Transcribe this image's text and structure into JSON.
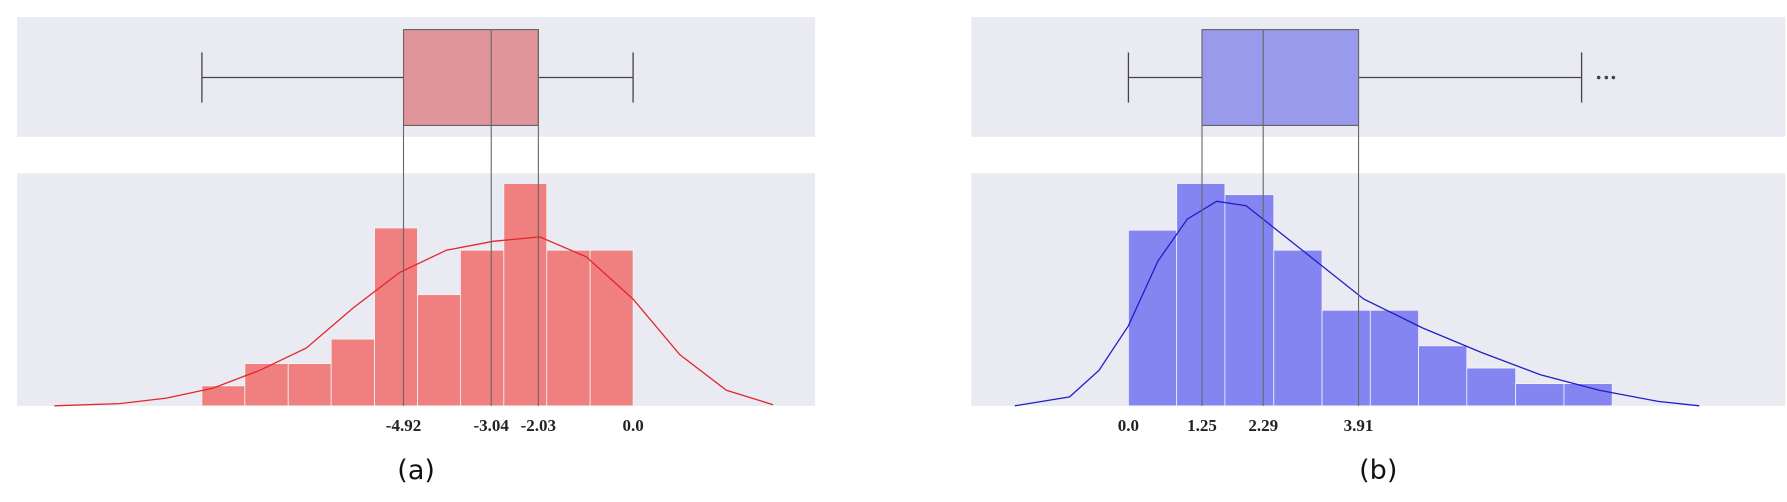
{
  "chart_data": [
    {
      "type": "histogram",
      "caption": "(a)",
      "color": "#f08080",
      "box_color": "#e0959a",
      "kde_color": "#e3262b",
      "xlim": [
        -13.2,
        3.9
      ],
      "ylim": [
        0,
        10.46
      ],
      "xticks": [
        -4.92,
        -3.04,
        -2.03,
        {
          "value": 0,
          "label": "0.0"
        }
      ],
      "bins": [
        -9.24,
        -8.32,
        -7.39,
        -6.47,
        -5.54,
        -4.62,
        -3.7,
        -2.77,
        -1.85,
        -0.92,
        0
      ],
      "counts": [
        0.9,
        1.9,
        1.9,
        3.0,
        8.0,
        5.0,
        7.0,
        10.0,
        7.0,
        7.0
      ],
      "kde": {
        "x": [
          -12.4,
          -11,
          -10,
          -9,
          -8,
          -7,
          -6,
          -5,
          -4,
          -3,
          -2,
          -1,
          0,
          1,
          2,
          3
        ],
        "y": [
          0,
          0.1,
          0.35,
          0.8,
          1.6,
          2.6,
          4.4,
          6.0,
          7.0,
          7.4,
          7.6,
          6.7,
          4.8,
          2.3,
          0.7,
          0.05
        ]
      },
      "box": {
        "whisker_low": -9.24,
        "q1": -4.92,
        "median": -3.04,
        "q3": -2.03,
        "whisker_high": 0,
        "outliers": []
      }
    },
    {
      "type": "histogram",
      "caption": "(b)",
      "color": "#8585f2",
      "box_color": "#9a9aec",
      "kde_color": "#1f1fc8",
      "xlim": [
        -2.67,
        11.16
      ],
      "ylim": [
        0,
        10.46
      ],
      "xticks": [
        {
          "value": 0,
          "label": "0.0"
        },
        1.25,
        2.29,
        3.91
      ],
      "bins": [
        0,
        0.82,
        1.64,
        2.47,
        3.29,
        4.11,
        4.93,
        5.75,
        6.58,
        7.4,
        8.22
      ],
      "counts": [
        7.9,
        10.0,
        9.5,
        7.0,
        4.3,
        4.3,
        2.7,
        1.7,
        1.0,
        1.0
      ],
      "kde": {
        "x": [
          -1.93,
          -1,
          -0.5,
          0,
          0.5,
          1,
          1.5,
          2,
          3,
          4,
          5,
          6,
          7,
          8,
          9,
          9.7
        ],
        "y": [
          0,
          0.4,
          1.6,
          3.6,
          6.5,
          8.4,
          9.2,
          9.0,
          6.9,
          4.8,
          3.5,
          2.4,
          1.4,
          0.7,
          0.2,
          0
        ]
      },
      "box": {
        "whisker_low": 0,
        "q1": 1.25,
        "median": 2.29,
        "q3": 3.91,
        "whisker_high": 7.7,
        "outliers": [
          7.99,
          8.12,
          8.24
        ]
      }
    }
  ]
}
